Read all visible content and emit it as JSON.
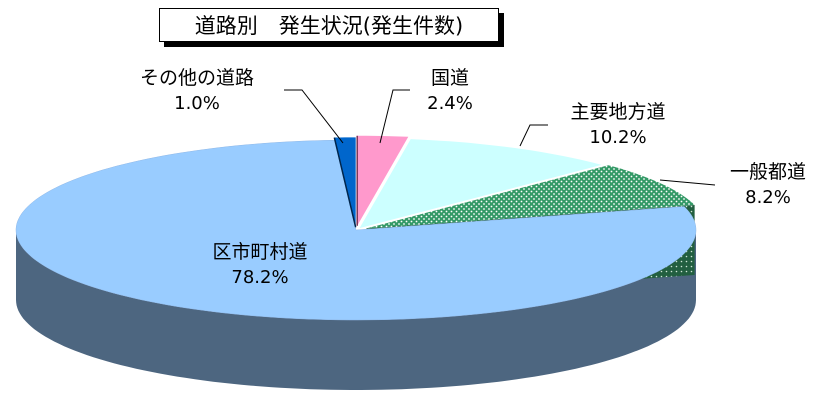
{
  "chart_data": {
    "type": "pie",
    "title": "道路別　発生状況(発生件数)",
    "slices": [
      {
        "label": "国道",
        "value": 2.4,
        "value_label": "2.4%",
        "color": "#ff99cc"
      },
      {
        "label": "主要地方道",
        "value": 10.2,
        "value_label": "10.2%",
        "color": "#ccffff"
      },
      {
        "label": "一般都道",
        "value": 8.2,
        "value_label": "8.2%",
        "color": "#339966"
      },
      {
        "label": "区市町村道",
        "value": 78.2,
        "value_label": "78.2%",
        "color": "#99ccff"
      },
      {
        "label": "その他の道路",
        "value": 1.0,
        "value_label": "1.0%",
        "color": "#0066cc"
      }
    ],
    "style": "3d-exploded"
  }
}
